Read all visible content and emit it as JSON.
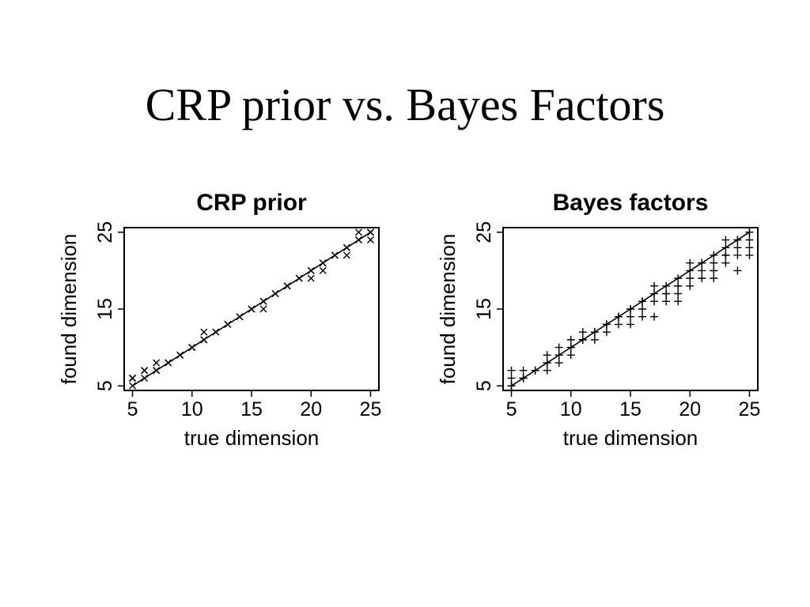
{
  "slide": {
    "title": "CRP prior vs. Bayes Factors"
  },
  "chart_data": [
    {
      "type": "scatter",
      "title": "CRP prior",
      "xlabel": "true dimension",
      "ylabel": "found dimension",
      "xlim": [
        4.3,
        25.7
      ],
      "ylim": [
        4.4,
        25.6
      ],
      "xticks": [
        5,
        10,
        15,
        20,
        25
      ],
      "yticks": [
        5,
        15,
        25
      ],
      "marker": "x",
      "reference_line": {
        "from": [
          5,
          5
        ],
        "to": [
          25,
          25
        ]
      },
      "points": [
        [
          5,
          5
        ],
        [
          5,
          6
        ],
        [
          5,
          6
        ],
        [
          5,
          6
        ],
        [
          6,
          6
        ],
        [
          6,
          7
        ],
        [
          6,
          7
        ],
        [
          6,
          7
        ],
        [
          7,
          7
        ],
        [
          7,
          7
        ],
        [
          7,
          8
        ],
        [
          7,
          7
        ],
        [
          8,
          8
        ],
        [
          8,
          8
        ],
        [
          9,
          9
        ],
        [
          9,
          9
        ],
        [
          10,
          10
        ],
        [
          10,
          10
        ],
        [
          10,
          10
        ],
        [
          11,
          11
        ],
        [
          11,
          11
        ],
        [
          11,
          12
        ],
        [
          12,
          12
        ],
        [
          12,
          12
        ],
        [
          13,
          13
        ],
        [
          13,
          13
        ],
        [
          14,
          14
        ],
        [
          14,
          14
        ],
        [
          15,
          15
        ],
        [
          15,
          15
        ],
        [
          16,
          16
        ],
        [
          16,
          15
        ],
        [
          16,
          16
        ],
        [
          17,
          17
        ],
        [
          17,
          17
        ],
        [
          18,
          18
        ],
        [
          18,
          18
        ],
        [
          19,
          19
        ],
        [
          19,
          19
        ],
        [
          20,
          20
        ],
        [
          20,
          19
        ],
        [
          20,
          20
        ],
        [
          21,
          21
        ],
        [
          21,
          20
        ],
        [
          21,
          21
        ],
        [
          22,
          22
        ],
        [
          22,
          22
        ],
        [
          23,
          23
        ],
        [
          23,
          22
        ],
        [
          23,
          23
        ],
        [
          24,
          24
        ],
        [
          24,
          25
        ],
        [
          24,
          24
        ],
        [
          25,
          25
        ],
        [
          25,
          24
        ],
        [
          25,
          25
        ],
        [
          25,
          25
        ]
      ]
    },
    {
      "type": "scatter",
      "title": "Bayes factors",
      "xlabel": "true dimension",
      "ylabel": "found dimension",
      "xlim": [
        4.3,
        25.7
      ],
      "ylim": [
        4.4,
        25.6
      ],
      "xticks": [
        5,
        10,
        15,
        20,
        25
      ],
      "yticks": [
        5,
        15,
        25
      ],
      "marker": "+",
      "reference_line": {
        "from": [
          5,
          5
        ],
        "to": [
          25,
          25
        ]
      },
      "points": [
        [
          5,
          5
        ],
        [
          5,
          5
        ],
        [
          5,
          6
        ],
        [
          5,
          7
        ],
        [
          5,
          5
        ],
        [
          6,
          6
        ],
        [
          6,
          7
        ],
        [
          6,
          6
        ],
        [
          7,
          7
        ],
        [
          7,
          7
        ],
        [
          8,
          8
        ],
        [
          8,
          9
        ],
        [
          8,
          7
        ],
        [
          8,
          8
        ],
        [
          9,
          9
        ],
        [
          9,
          10
        ],
        [
          9,
          8
        ],
        [
          9,
          9
        ],
        [
          10,
          10
        ],
        [
          10,
          11
        ],
        [
          10,
          9
        ],
        [
          10,
          10
        ],
        [
          11,
          11
        ],
        [
          11,
          12
        ],
        [
          11,
          11
        ],
        [
          12,
          12
        ],
        [
          12,
          11
        ],
        [
          12,
          12
        ],
        [
          13,
          13
        ],
        [
          13,
          12
        ],
        [
          13,
          13
        ],
        [
          14,
          14
        ],
        [
          14,
          13
        ],
        [
          14,
          14
        ],
        [
          15,
          15
        ],
        [
          15,
          14
        ],
        [
          15,
          13
        ],
        [
          15,
          15
        ],
        [
          16,
          16
        ],
        [
          16,
          15
        ],
        [
          16,
          14
        ],
        [
          16,
          16
        ],
        [
          17,
          17
        ],
        [
          17,
          16
        ],
        [
          17,
          18
        ],
        [
          17,
          14
        ],
        [
          18,
          18
        ],
        [
          18,
          17
        ],
        [
          18,
          16
        ],
        [
          18,
          17
        ],
        [
          19,
          19
        ],
        [
          19,
          18
        ],
        [
          19,
          17
        ],
        [
          19,
          16
        ],
        [
          19,
          18
        ],
        [
          20,
          20
        ],
        [
          20,
          21
        ],
        [
          20,
          19
        ],
        [
          20,
          18
        ],
        [
          21,
          21
        ],
        [
          21,
          20
        ],
        [
          21,
          19
        ],
        [
          21,
          21
        ],
        [
          22,
          22
        ],
        [
          22,
          21
        ],
        [
          22,
          20
        ],
        [
          22,
          19
        ],
        [
          22,
          20
        ],
        [
          23,
          23
        ],
        [
          23,
          24
        ],
        [
          23,
          22
        ],
        [
          23,
          21
        ],
        [
          23,
          22
        ],
        [
          24,
          24
        ],
        [
          24,
          23
        ],
        [
          24,
          22
        ],
        [
          24,
          20
        ],
        [
          24,
          24
        ],
        [
          25,
          25
        ],
        [
          25,
          24
        ],
        [
          25,
          23
        ],
        [
          25,
          22
        ],
        [
          25,
          25
        ]
      ]
    }
  ]
}
